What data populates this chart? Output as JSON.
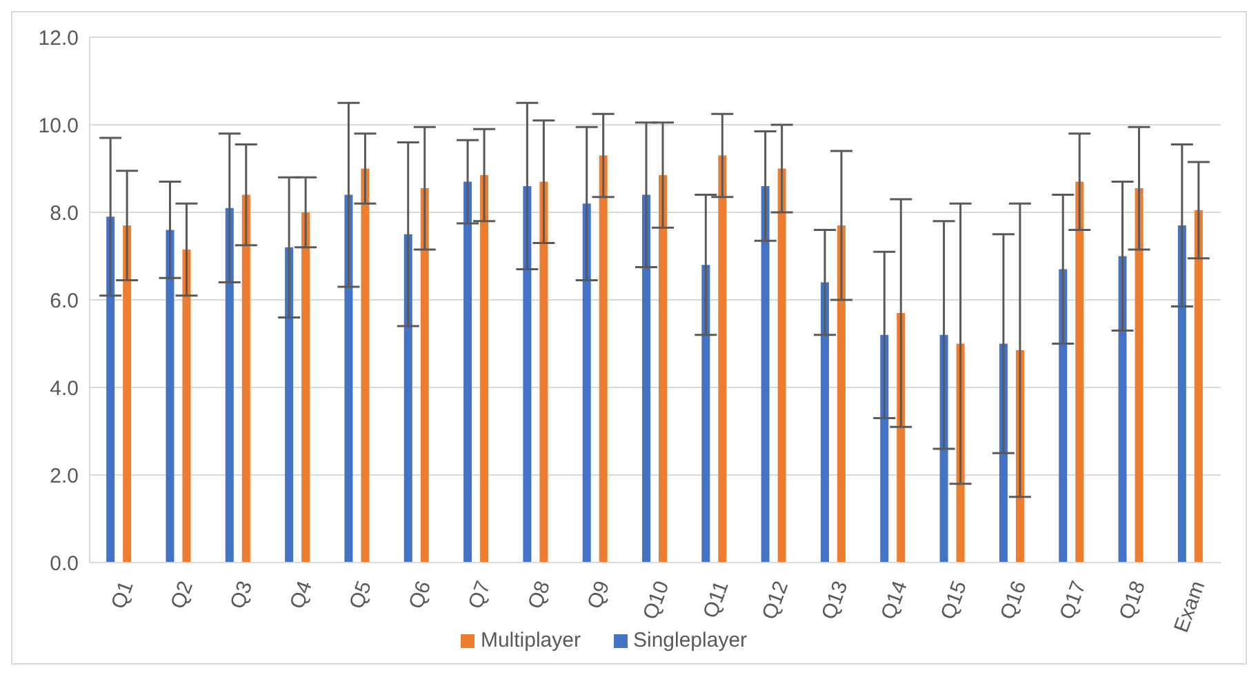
{
  "chart_data": {
    "type": "bar",
    "categories": [
      "Q1",
      "Q2",
      "Q3",
      "Q4",
      "Q5",
      "Q6",
      "Q7",
      "Q8",
      "Q9",
      "Q10",
      "Q11",
      "Q12",
      "Q13",
      "Q14",
      "Q15",
      "Q16",
      "Q17",
      "Q18",
      "Exam"
    ],
    "series": [
      {
        "name": "Singleplayer",
        "color": "#4472c4",
        "values": [
          7.9,
          7.6,
          8.1,
          7.2,
          8.4,
          7.5,
          8.7,
          8.6,
          8.2,
          8.4,
          6.8,
          8.6,
          6.4,
          5.2,
          5.2,
          5.0,
          6.7,
          7.0,
          7.7
        ],
        "errors": [
          1.8,
          1.1,
          1.7,
          1.6,
          2.1,
          2.1,
          0.95,
          1.9,
          1.75,
          1.65,
          1.6,
          1.25,
          1.2,
          1.9,
          2.6,
          2.5,
          1.7,
          1.7,
          1.85
        ]
      },
      {
        "name": "Multiplayer",
        "color": "#ed7d31",
        "values": [
          7.7,
          7.15,
          8.4,
          8.0,
          9.0,
          8.55,
          8.85,
          8.7,
          9.3,
          8.85,
          9.3,
          9.0,
          7.7,
          5.7,
          5.0,
          4.85,
          8.7,
          8.55,
          8.05
        ],
        "errors": [
          1.25,
          1.05,
          1.15,
          0.8,
          0.8,
          1.4,
          1.05,
          1.4,
          0.95,
          1.2,
          0.95,
          1.0,
          1.7,
          2.6,
          3.2,
          3.35,
          1.1,
          1.4,
          1.1
        ]
      }
    ],
    "ylim": [
      0,
      12
    ],
    "yticks": [
      {
        "value": 0,
        "label": "0.0"
      },
      {
        "value": 2,
        "label": "2.0"
      },
      {
        "value": 4,
        "label": "4.0"
      },
      {
        "value": 6,
        "label": "6.0"
      },
      {
        "value": 8,
        "label": "8.0"
      },
      {
        "value": 10,
        "label": "10.0"
      },
      {
        "value": 12,
        "label": "12.0"
      }
    ],
    "grid": "y",
    "legend": "bottom"
  }
}
